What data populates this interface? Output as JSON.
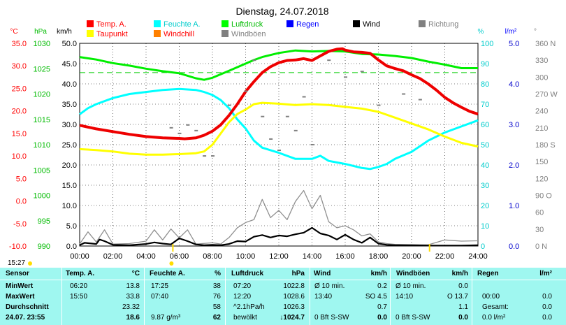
{
  "title": "Dienstag, 24.07.2018",
  "legend": [
    {
      "label": "Temp. A.",
      "color": "#ff0000"
    },
    {
      "label": "Feuchte A.",
      "color": "#00ffff"
    },
    {
      "label": "Luftdruck",
      "color": "#00ff00"
    },
    {
      "label": "Regen",
      "color": "#0000ff"
    },
    {
      "label": "Wind",
      "color": "#000000"
    },
    {
      "label": "Richtung",
      "color": "#808080"
    },
    {
      "label": "Taupunkt",
      "color": "#ffff00"
    },
    {
      "label": "Windchill",
      "color": "#ff8000"
    },
    {
      "label": "Windböen",
      "color": "#808080"
    }
  ],
  "axis_units": {
    "temp": "°C",
    "press": "hPa",
    "wind": "km/h",
    "hum": "%",
    "rain": "l/m²",
    "dir": "°"
  },
  "axes": {
    "temp_ticks": [
      "35.0",
      "30.0",
      "25.0",
      "20.0",
      "15.0",
      "10.0",
      "5.0",
      "0.0",
      "-5.0",
      "-10.0"
    ],
    "press_ticks": [
      "1030",
      "1025",
      "1020",
      "1015",
      "1010",
      "1005",
      "1000",
      "995",
      "990"
    ],
    "wind_ticks": [
      "50.0",
      "45.0",
      "40.0",
      "35.0",
      "30.0",
      "25.0",
      "20.0",
      "15.0",
      "10.0",
      "5.0",
      "0.0"
    ],
    "hum_ticks": [
      "100",
      "90",
      "80",
      "70",
      "60",
      "50",
      "40",
      "30",
      "20",
      "10",
      "0"
    ],
    "rain_ticks": [
      "5.0",
      "4.0",
      "3.0",
      "2.0",
      "1.0",
      "0.0"
    ],
    "dir_ticks": [
      "360 N",
      "330",
      "300",
      "270 W",
      "240",
      "210",
      "180 S",
      "150",
      "120",
      "90 O",
      "60",
      "30",
      "0 N"
    ],
    "x_ticks": [
      "00:00",
      "02:00",
      "04:00",
      "06:00",
      "08:00",
      "10:00",
      "12:00",
      "14:00",
      "16:00",
      "18:00",
      "20:00",
      "22:00",
      "24:00"
    ]
  },
  "chart_data": {
    "type": "line",
    "x_unit": "hour",
    "xlim": [
      0,
      24
    ],
    "series": [
      {
        "name": "Temp. A.",
        "axis": "temp °C",
        "ylim": [
          -10,
          35
        ],
        "x": [
          0,
          1,
          2,
          3,
          4,
          5,
          6,
          6.33,
          7,
          7.5,
          8,
          8.5,
          9,
          9.5,
          10,
          10.5,
          11,
          11.5,
          12,
          12.5,
          13,
          13.5,
          14,
          14.5,
          15,
          15.5,
          15.83,
          16,
          16.5,
          17,
          17.5,
          18,
          18.5,
          19,
          19.5,
          20,
          20.5,
          21,
          21.5,
          22,
          22.5,
          23,
          23.5,
          24
        ],
        "y": [
          16.8,
          16.0,
          15.4,
          14.8,
          14.3,
          14.0,
          13.9,
          13.8,
          14.0,
          14.6,
          15.5,
          16.9,
          19.0,
          21.5,
          24.3,
          26.5,
          28.5,
          29.8,
          30.7,
          31.2,
          31.3,
          31.6,
          31.2,
          32.2,
          33.2,
          33.7,
          33.8,
          33.5,
          33.1,
          33.0,
          32.8,
          31.3,
          30.0,
          29.4,
          28.9,
          28.0,
          27.2,
          26.0,
          24.6,
          23.0,
          21.8,
          20.8,
          19.9,
          19.3
        ]
      },
      {
        "name": "Taupunkt",
        "axis": "temp °C",
        "ylim": [
          -10,
          35
        ],
        "x": [
          0,
          1,
          2,
          3,
          4,
          5,
          6,
          7,
          7.5,
          8,
          8.5,
          9,
          9.5,
          10,
          10.5,
          11,
          12,
          13,
          14,
          15,
          16,
          17,
          18,
          19,
          20,
          21,
          22,
          23,
          24
        ],
        "y": [
          11.5,
          11.3,
          11.0,
          10.5,
          10.3,
          10.3,
          10.4,
          10.6,
          11.0,
          12.5,
          15.0,
          17.5,
          19.3,
          20.3,
          21.5,
          21.8,
          21.6,
          21.3,
          21.5,
          21.3,
          20.9,
          20.5,
          19.8,
          18.5,
          17.2,
          15.9,
          14.3,
          12.9,
          12.1
        ]
      },
      {
        "name": "Feuchte A.",
        "axis": "hum %",
        "ylim": [
          0,
          100
        ],
        "x": [
          0,
          0.5,
          1,
          2,
          3,
          4,
          5,
          6,
          7,
          7.5,
          8,
          8.5,
          9,
          9.5,
          10,
          10.5,
          11,
          12,
          13,
          14,
          14.5,
          15,
          16,
          17,
          17.5,
          18,
          18.5,
          19,
          20,
          21,
          22,
          23,
          24
        ],
        "y": [
          65,
          68,
          70,
          73,
          75,
          76,
          77,
          77.5,
          77,
          76,
          74.5,
          72,
          68,
          62.5,
          58,
          52,
          48.5,
          46,
          43,
          43,
          44.5,
          42,
          40.5,
          38.5,
          38,
          39,
          40.5,
          43,
          46.5,
          52,
          56,
          59,
          62
        ]
      },
      {
        "name": "Luftdruck",
        "axis": "press hPa",
        "ylim": [
          990,
          1030
        ],
        "x": [
          0,
          1,
          2,
          3,
          4,
          5,
          6,
          7,
          7.5,
          8,
          9,
          10,
          10.5,
          11,
          11.5,
          12,
          13,
          14,
          15,
          16,
          17,
          18,
          19,
          20,
          21,
          22,
          23,
          24
        ],
        "y": [
          1027.3,
          1026.8,
          1026.1,
          1025.6,
          1025.0,
          1024.5,
          1024.1,
          1023.1,
          1022.8,
          1023.2,
          1024.6,
          1026.0,
          1026.7,
          1027.3,
          1027.7,
          1028.1,
          1028.6,
          1028.4,
          1028.5,
          1028.4,
          1027.9,
          1027.8,
          1027.5,
          1027.1,
          1026.4,
          1025.8,
          1025.1,
          1025.1
        ]
      },
      {
        "name": "Wind",
        "axis": "wind km/h",
        "ylim": [
          0,
          50
        ],
        "x": [
          0,
          0.3,
          1,
          1.2,
          1.5,
          2,
          3,
          4,
          4.5,
          5,
          5.5,
          6,
          6.5,
          7,
          7.5,
          8,
          8.5,
          9,
          9.5,
          10,
          10.5,
          11,
          11.5,
          12,
          12.5,
          13,
          13.5,
          14,
          14.5,
          15,
          15.5,
          16,
          16.5,
          17,
          17.5,
          18,
          18.5,
          19,
          20,
          21,
          22,
          23,
          24
        ],
        "y": [
          0.2,
          0.8,
          0.5,
          1.6,
          1.2,
          0.3,
          0.2,
          0.5,
          0.9,
          0.6,
          0.4,
          1.9,
          1.2,
          0.4,
          0.2,
          0.3,
          0.2,
          0.5,
          1.2,
          1.1,
          2.3,
          2.7,
          2.1,
          2.6,
          2.4,
          2.9,
          3.3,
          4.5,
          3.1,
          2.6,
          1.6,
          2.8,
          1.6,
          0.8,
          2.1,
          0.6,
          0.3,
          0.2,
          0.2,
          0.1,
          0.1,
          0.1,
          0.2
        ]
      },
      {
        "name": "Windböen",
        "axis": "wind km/h",
        "ylim": [
          0,
          50
        ],
        "x": [
          0,
          0.5,
          1,
          1.5,
          2,
          3,
          4,
          4.5,
          5,
          5.5,
          6,
          6.5,
          7,
          8,
          8.5,
          9,
          9.5,
          10,
          10.5,
          11,
          11.5,
          12,
          12.5,
          13,
          13.5,
          14,
          14.5,
          15,
          15.5,
          16,
          16.5,
          17,
          17.5,
          18,
          18.5,
          19,
          20,
          21,
          22,
          23,
          24
        ],
        "y": [
          0.5,
          3.5,
          1.0,
          4.0,
          0.5,
          0.6,
          1.2,
          4.0,
          1.5,
          4.2,
          2.0,
          4.0,
          0.5,
          0.8,
          0.5,
          2.1,
          4.5,
          5.8,
          6.5,
          11.5,
          7.0,
          8.8,
          6.5,
          11.0,
          13.7,
          9.2,
          12.5,
          6.0,
          4.5,
          5.0,
          4.0,
          2.5,
          3.0,
          1.0,
          0.6,
          0.4,
          0.3,
          0.3,
          1.5,
          1.2,
          1.3
        ]
      },
      {
        "name": "Richtung",
        "axis": "dir °",
        "ylim": [
          0,
          360
        ],
        "x": [
          5.5,
          6,
          6.5,
          7,
          7.5,
          8,
          9,
          10,
          10.5,
          11,
          11.5,
          12,
          12.5,
          13,
          13.5,
          14,
          15,
          16,
          17,
          18,
          19.5,
          20.5
        ],
        "y": [
          210,
          200,
          215,
          205,
          160,
          160,
          250,
          275,
          330,
          230,
          190,
          170,
          230,
          205,
          265,
          180,
          330,
          300,
          310,
          250,
          270,
          260
        ]
      }
    ],
    "reference_line": {
      "value": 28.5,
      "axis": "temp °C",
      "color": "#00cc00"
    }
  },
  "sun": {
    "sunrise": "05:37",
    "sunset": "21:05"
  },
  "time_label": "15:27",
  "stats": {
    "headers": {
      "sensor": "Sensor",
      "temp": "Temp. A.",
      "temp_unit": "°C",
      "hum": "Feuchte A.",
      "hum_unit": "%",
      "press": "Luftdruck",
      "press_unit": "hPa",
      "wind": "Wind",
      "wind_unit": "km/h",
      "gust": "Windböen",
      "gust_unit": "km/h",
      "rain": "Regen",
      "rain_unit": "l/m²"
    },
    "rows": [
      {
        "label": "MinWert",
        "temp_time": "06:20",
        "temp": "13.8",
        "hum_time": "17:25",
        "hum": "38",
        "press_time": "07:20",
        "press": "1022.8",
        "wind_time": "Ø 10 min.",
        "wind": "0.2",
        "gust_time": "Ø 10 min.",
        "gust": "0.0",
        "rain_time": "",
        "rain": ""
      },
      {
        "label": "MaxWert",
        "temp_time": "15:50",
        "temp": "33.8",
        "hum_time": "07:40",
        "hum": "76",
        "press_time": "12:20",
        "press": "1028.6",
        "wind_time": "13:40",
        "wind_dir": "SO 4.5",
        "wind": "",
        "gust_time": "14:10",
        "gust_dir": "O 13.7",
        "gust": "",
        "rain_time": "00:00",
        "rain": "0.0"
      },
      {
        "label": "Durchschnitt",
        "temp_time": "",
        "temp": "23.32",
        "hum_time": "",
        "hum": "58",
        "press_time": "^2.1hPa/h",
        "press": "1026.3",
        "wind_time": "",
        "wind": "0.7",
        "gust_time": "",
        "gust": "1.1",
        "rain_time": "Gesamt:",
        "rain": "0.0"
      },
      {
        "label": "24.07. 23:55",
        "temp_time": "",
        "temp": "18.6",
        "hum_time": "9.87 g/m³",
        "hum": "62",
        "press_time": "bewölkt",
        "press": "↓1024.7",
        "wind_time": "0 Bft S-SW",
        "wind": "0.0",
        "gust_time": "0 Bft S-SW",
        "gust": "0.0",
        "rain_time": "0.0 l/m²",
        "rain": "0.0"
      }
    ]
  }
}
